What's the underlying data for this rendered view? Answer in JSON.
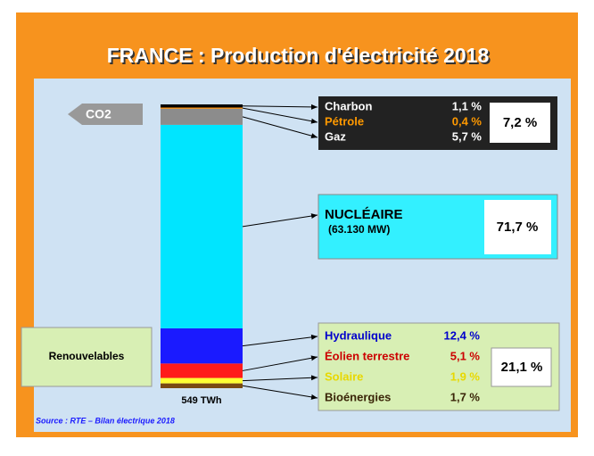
{
  "chart_data": {
    "type": "stacked_bar",
    "title": "FRANCE : Production d'électricité 2018",
    "total_label": "549 TWh",
    "source": "Source : RTE – Bilan électrique 2018",
    "series": [
      {
        "name": "Bioénergies",
        "color": "#7a4a12",
        "label_color": "#3a2508",
        "values": [
          1.7
        ],
        "value_labels": [
          "1,7 %"
        ]
      },
      {
        "name": "Solaire",
        "color": "#ffff33",
        "label_color": "#e8d800",
        "values": [
          1.9
        ],
        "value_labels": [
          "1,9 %"
        ]
      },
      {
        "name": "Éolien terrestre",
        "color": "#ff1a1a",
        "label_color": "#cc0000",
        "values": [
          5.1
        ],
        "value_labels": [
          "5,1 %"
        ]
      },
      {
        "name": "Hydraulique",
        "color": "#1a1aff",
        "label_color": "#0000cc",
        "values": [
          12.4
        ],
        "value_labels": [
          "12,4 %"
        ]
      },
      {
        "name": "NUCLÉAIRE",
        "note": "(63.130 MW)",
        "color": "#00e5ff",
        "label_color": "#000000",
        "values": [
          71.7
        ],
        "value_labels": [
          "71,7 %"
        ]
      },
      {
        "name": "Gaz",
        "color": "#8c8c8c",
        "label_color": "#ffffff",
        "values": [
          5.7
        ],
        "value_labels": [
          "5,7 %"
        ]
      },
      {
        "name": "Pétrole",
        "color": "#ff8c00",
        "label_color": "#ff9900",
        "values": [
          0.4
        ],
        "value_labels": [
          "0,4 %"
        ]
      },
      {
        "name": "Charbon",
        "color": "#000000",
        "label_color": "#ffffff",
        "values": [
          1.1
        ],
        "value_labels": [
          "1,1 %"
        ]
      }
    ],
    "groups": [
      {
        "label": "CO2",
        "total": 7.2,
        "total_label": "7,2 %"
      },
      {
        "label": "Renouvelables",
        "total": 21.1,
        "total_label": "21,1 %"
      }
    ]
  }
}
